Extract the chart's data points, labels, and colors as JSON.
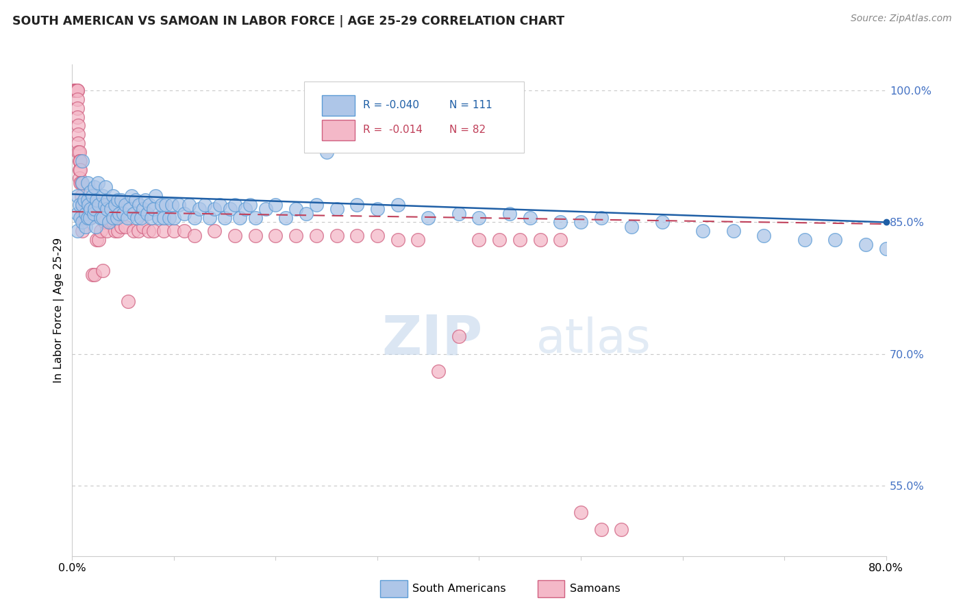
{
  "title": "SOUTH AMERICAN VS SAMOAN IN LABOR FORCE | AGE 25-29 CORRELATION CHART",
  "source": "Source: ZipAtlas.com",
  "ylabel": "In Labor Force | Age 25-29",
  "xlim": [
    0.0,
    0.8
  ],
  "ylim": [
    0.47,
    1.03
  ],
  "xticks": [
    0.0,
    0.1,
    0.2,
    0.3,
    0.4,
    0.5,
    0.6,
    0.7,
    0.8
  ],
  "xticklabels": [
    "0.0%",
    "",
    "",
    "",
    "",
    "",
    "",
    "",
    "80.0%"
  ],
  "yticks_right": [
    0.55,
    0.7,
    0.85,
    1.0
  ],
  "ytick_right_labels": [
    "55.0%",
    "70.0%",
    "85.0%",
    "100.0%"
  ],
  "right_ytick_color": "#4472c4",
  "grid_color": "#c8c8c8",
  "blue_color": "#aec6e8",
  "blue_edge": "#5b9bd5",
  "pink_color": "#f4b8c8",
  "pink_edge": "#d06080",
  "blue_line_color": "#1f5fa6",
  "pink_line_color": "#c0405a",
  "legend_blue_R": "R = -0.040",
  "legend_blue_N": "N = 111",
  "legend_pink_R": "R =  -0.014",
  "legend_pink_N": "N = 82",
  "R_blue": -0.04,
  "R_pink": -0.014,
  "watermark": "ZIPatlas",
  "blue_x": [
    0.005,
    0.005,
    0.005,
    0.007,
    0.008,
    0.01,
    0.01,
    0.01,
    0.01,
    0.012,
    0.013,
    0.013,
    0.015,
    0.015,
    0.015,
    0.016,
    0.017,
    0.018,
    0.018,
    0.02,
    0.021,
    0.022,
    0.022,
    0.023,
    0.024,
    0.025,
    0.026,
    0.028,
    0.03,
    0.03,
    0.032,
    0.033,
    0.034,
    0.035,
    0.036,
    0.038,
    0.04,
    0.04,
    0.042,
    0.044,
    0.045,
    0.046,
    0.048,
    0.05,
    0.052,
    0.054,
    0.056,
    0.058,
    0.06,
    0.062,
    0.064,
    0.066,
    0.068,
    0.07,
    0.072,
    0.074,
    0.076,
    0.078,
    0.08,
    0.082,
    0.085,
    0.088,
    0.09,
    0.092,
    0.095,
    0.098,
    0.1,
    0.105,
    0.11,
    0.115,
    0.12,
    0.125,
    0.13,
    0.135,
    0.14,
    0.145,
    0.15,
    0.155,
    0.16,
    0.165,
    0.17,
    0.175,
    0.18,
    0.19,
    0.2,
    0.21,
    0.22,
    0.23,
    0.24,
    0.25,
    0.26,
    0.28,
    0.3,
    0.32,
    0.35,
    0.38,
    0.4,
    0.43,
    0.45,
    0.48,
    0.5,
    0.52,
    0.55,
    0.58,
    0.62,
    0.65,
    0.68,
    0.72,
    0.75,
    0.78,
    0.8
  ],
  "blue_y": [
    0.88,
    0.86,
    0.84,
    0.87,
    0.855,
    0.92,
    0.895,
    0.87,
    0.85,
    0.875,
    0.86,
    0.845,
    0.895,
    0.875,
    0.855,
    0.87,
    0.855,
    0.885,
    0.865,
    0.88,
    0.86,
    0.89,
    0.865,
    0.845,
    0.875,
    0.895,
    0.87,
    0.855,
    0.88,
    0.855,
    0.87,
    0.89,
    0.865,
    0.875,
    0.85,
    0.865,
    0.88,
    0.855,
    0.87,
    0.855,
    0.875,
    0.86,
    0.875,
    0.86,
    0.87,
    0.855,
    0.865,
    0.88,
    0.86,
    0.875,
    0.855,
    0.87,
    0.855,
    0.865,
    0.875,
    0.86,
    0.87,
    0.855,
    0.865,
    0.88,
    0.855,
    0.87,
    0.855,
    0.87,
    0.855,
    0.87,
    0.855,
    0.87,
    0.86,
    0.87,
    0.855,
    0.865,
    0.87,
    0.855,
    0.865,
    0.87,
    0.855,
    0.865,
    0.87,
    0.855,
    0.865,
    0.87,
    0.855,
    0.865,
    0.87,
    0.855,
    0.865,
    0.86,
    0.87,
    0.93,
    0.865,
    0.87,
    0.865,
    0.87,
    0.855,
    0.86,
    0.855,
    0.86,
    0.855,
    0.85,
    0.85,
    0.855,
    0.845,
    0.85,
    0.84,
    0.84,
    0.835,
    0.83,
    0.83,
    0.825,
    0.82
  ],
  "pink_x": [
    0.002,
    0.003,
    0.003,
    0.004,
    0.004,
    0.004,
    0.005,
    0.005,
    0.005,
    0.005,
    0.005,
    0.006,
    0.006,
    0.006,
    0.006,
    0.007,
    0.007,
    0.007,
    0.007,
    0.008,
    0.008,
    0.008,
    0.009,
    0.009,
    0.01,
    0.01,
    0.01,
    0.01,
    0.012,
    0.012,
    0.013,
    0.014,
    0.015,
    0.016,
    0.017,
    0.018,
    0.02,
    0.022,
    0.024,
    0.026,
    0.028,
    0.03,
    0.032,
    0.034,
    0.036,
    0.038,
    0.04,
    0.042,
    0.045,
    0.048,
    0.052,
    0.055,
    0.06,
    0.065,
    0.07,
    0.075,
    0.08,
    0.09,
    0.1,
    0.11,
    0.12,
    0.14,
    0.16,
    0.18,
    0.2,
    0.22,
    0.24,
    0.26,
    0.28,
    0.3,
    0.32,
    0.34,
    0.36,
    0.38,
    0.4,
    0.42,
    0.44,
    0.46,
    0.48,
    0.5,
    0.52,
    0.54
  ],
  "pink_y": [
    1.0,
    1.0,
    1.0,
    1.0,
    1.0,
    1.0,
    1.0,
    1.0,
    0.99,
    0.98,
    0.97,
    0.96,
    0.95,
    0.94,
    0.93,
    0.93,
    0.92,
    0.91,
    0.9,
    0.92,
    0.91,
    0.895,
    0.895,
    0.88,
    0.87,
    0.87,
    0.855,
    0.84,
    0.875,
    0.855,
    0.87,
    0.86,
    0.87,
    0.855,
    0.865,
    0.855,
    0.79,
    0.79,
    0.83,
    0.83,
    0.84,
    0.795,
    0.85,
    0.84,
    0.85,
    0.85,
    0.85,
    0.84,
    0.84,
    0.845,
    0.845,
    0.76,
    0.84,
    0.84,
    0.845,
    0.84,
    0.84,
    0.84,
    0.84,
    0.84,
    0.835,
    0.84,
    0.835,
    0.835,
    0.835,
    0.835,
    0.835,
    0.835,
    0.835,
    0.835,
    0.83,
    0.83,
    0.68,
    0.72,
    0.83,
    0.83,
    0.83,
    0.83,
    0.83,
    0.52,
    0.5,
    0.5
  ]
}
